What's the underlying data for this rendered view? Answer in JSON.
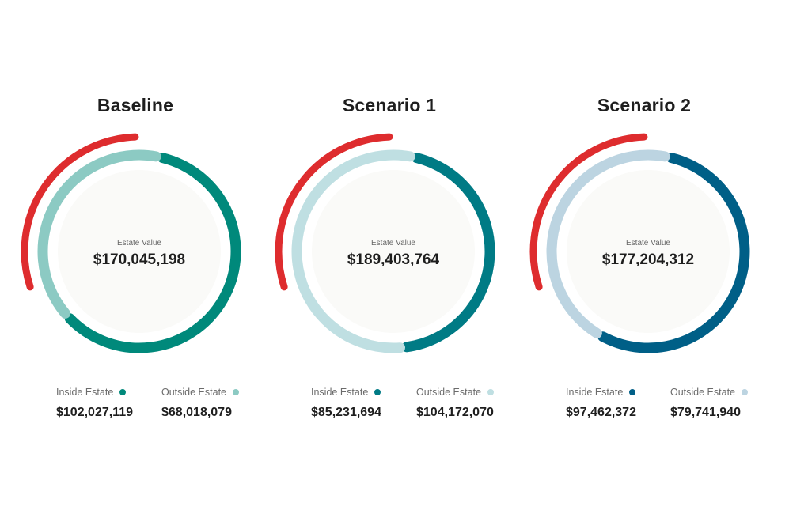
{
  "chart_data": [
    {
      "type": "pie",
      "title": "Baseline",
      "center_label": "Estate Value",
      "center_value": "$170,045,198",
      "series": [
        {
          "name": "Inside Estate",
          "value": 102027119,
          "value_label": "$102,027,119",
          "color": "#00897b"
        },
        {
          "name": "Outside Estate",
          "value": 68018079,
          "value_label": "$68,018,079",
          "color": "#8ccac3"
        }
      ],
      "highlight_color": "#de2c2e",
      "legend_position": "bottom"
    },
    {
      "type": "pie",
      "title": "Scenario 1",
      "center_label": "Estate Value",
      "center_value": "$189,403,764",
      "series": [
        {
          "name": "Inside Estate",
          "value": 85231694,
          "value_label": "$85,231,694",
          "color": "#007b85"
        },
        {
          "name": "Outside Estate",
          "value": 104172070,
          "value_label": "$104,172,070",
          "color": "#bfdfe2"
        }
      ],
      "highlight_color": "#de2c2e",
      "legend_position": "bottom"
    },
    {
      "type": "pie",
      "title": "Scenario 2",
      "center_label": "Estate Value",
      "center_value": "$177,204,312",
      "series": [
        {
          "name": "Inside Estate",
          "value": 97462372,
          "value_label": "$97,462,372",
          "color": "#005f87"
        },
        {
          "name": "Outside Estate",
          "value": 79741940,
          "value_label": "$79,741,940",
          "color": "#bcd4e1"
        }
      ],
      "highlight_color": "#de2c2e",
      "legend_position": "bottom"
    }
  ]
}
